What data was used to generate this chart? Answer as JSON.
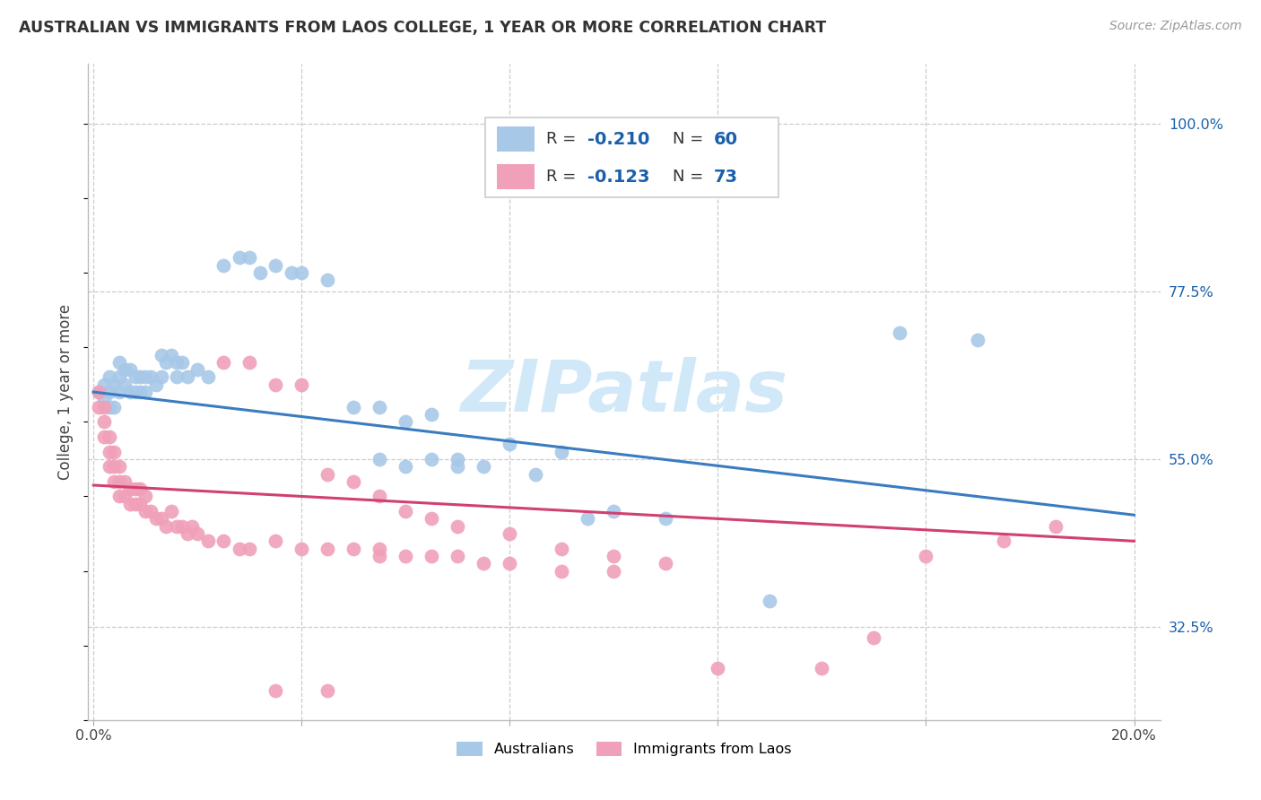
{
  "title": "AUSTRALIAN VS IMMIGRANTS FROM LAOS COLLEGE, 1 YEAR OR MORE CORRELATION CHART",
  "source": "Source: ZipAtlas.com",
  "ylabel": "College, 1 year or more",
  "xlim_min": -0.001,
  "xlim_max": 0.205,
  "ylim_min": 0.2,
  "ylim_max": 1.08,
  "xtick_positions": [
    0.0,
    0.04,
    0.08,
    0.12,
    0.16,
    0.2
  ],
  "xticklabels": [
    "0.0%",
    "",
    "",
    "",
    "",
    "20.0%"
  ],
  "ytick_values": [
    1.0,
    0.775,
    0.55,
    0.325
  ],
  "ytick_labels": [
    "100.0%",
    "77.5%",
    "55.0%",
    "32.5%"
  ],
  "australian_color": "#a8c8e8",
  "laos_color": "#f0a0b8",
  "line_aus_color": "#3a7cbf",
  "line_laos_color": "#d04070",
  "watermark": "ZIPatlas",
  "watermark_color": "#d0e8f8",
  "legend_text_color": "#1a5faa",
  "legend_R_label": "R = ",
  "legend_aus_R": "-0.210",
  "legend_aus_N": "60",
  "legend_laos_R": "-0.123",
  "legend_laos_N": "73",
  "aus_line_y0": 0.64,
  "aus_line_y1": 0.475,
  "laos_line_y0": 0.515,
  "laos_line_y1": 0.44,
  "australians_x": [
    0.001,
    0.002,
    0.002,
    0.003,
    0.003,
    0.003,
    0.004,
    0.004,
    0.005,
    0.005,
    0.005,
    0.006,
    0.006,
    0.007,
    0.007,
    0.008,
    0.008,
    0.009,
    0.009,
    0.01,
    0.01,
    0.011,
    0.012,
    0.013,
    0.013,
    0.014,
    0.015,
    0.016,
    0.016,
    0.017,
    0.018,
    0.02,
    0.022,
    0.025,
    0.028,
    0.03,
    0.032,
    0.035,
    0.038,
    0.04,
    0.045,
    0.05,
    0.055,
    0.06,
    0.065,
    0.07,
    0.08,
    0.09,
    0.1,
    0.11,
    0.055,
    0.06,
    0.065,
    0.07,
    0.075,
    0.085,
    0.095,
    0.13,
    0.155,
    0.17
  ],
  "australians_y": [
    0.64,
    0.65,
    0.63,
    0.66,
    0.64,
    0.62,
    0.65,
    0.62,
    0.68,
    0.66,
    0.64,
    0.67,
    0.65,
    0.67,
    0.64,
    0.66,
    0.64,
    0.66,
    0.64,
    0.66,
    0.64,
    0.66,
    0.65,
    0.69,
    0.66,
    0.68,
    0.69,
    0.68,
    0.66,
    0.68,
    0.66,
    0.67,
    0.66,
    0.81,
    0.82,
    0.82,
    0.8,
    0.81,
    0.8,
    0.8,
    0.79,
    0.62,
    0.62,
    0.6,
    0.61,
    0.54,
    0.57,
    0.56,
    0.48,
    0.47,
    0.55,
    0.54,
    0.55,
    0.55,
    0.54,
    0.53,
    0.47,
    0.36,
    0.72,
    0.71
  ],
  "laos_x": [
    0.001,
    0.001,
    0.002,
    0.002,
    0.002,
    0.003,
    0.003,
    0.003,
    0.004,
    0.004,
    0.004,
    0.005,
    0.005,
    0.005,
    0.006,
    0.006,
    0.007,
    0.007,
    0.008,
    0.008,
    0.009,
    0.009,
    0.01,
    0.01,
    0.011,
    0.012,
    0.013,
    0.014,
    0.015,
    0.016,
    0.017,
    0.018,
    0.019,
    0.02,
    0.022,
    0.025,
    0.028,
    0.03,
    0.035,
    0.04,
    0.045,
    0.05,
    0.055,
    0.06,
    0.065,
    0.07,
    0.075,
    0.08,
    0.09,
    0.1,
    0.025,
    0.03,
    0.035,
    0.04,
    0.045,
    0.05,
    0.055,
    0.06,
    0.065,
    0.07,
    0.08,
    0.09,
    0.1,
    0.11,
    0.12,
    0.14,
    0.15,
    0.16,
    0.175,
    0.185,
    0.035,
    0.045,
    0.055
  ],
  "laos_y": [
    0.64,
    0.62,
    0.62,
    0.6,
    0.58,
    0.58,
    0.56,
    0.54,
    0.56,
    0.54,
    0.52,
    0.54,
    0.52,
    0.5,
    0.52,
    0.5,
    0.51,
    0.49,
    0.51,
    0.49,
    0.51,
    0.49,
    0.5,
    0.48,
    0.48,
    0.47,
    0.47,
    0.46,
    0.48,
    0.46,
    0.46,
    0.45,
    0.46,
    0.45,
    0.44,
    0.44,
    0.43,
    0.43,
    0.44,
    0.43,
    0.43,
    0.43,
    0.42,
    0.42,
    0.42,
    0.42,
    0.41,
    0.41,
    0.4,
    0.4,
    0.68,
    0.68,
    0.65,
    0.65,
    0.53,
    0.52,
    0.5,
    0.48,
    0.47,
    0.46,
    0.45,
    0.43,
    0.42,
    0.41,
    0.27,
    0.27,
    0.31,
    0.42,
    0.44,
    0.46,
    0.24,
    0.24,
    0.43
  ]
}
